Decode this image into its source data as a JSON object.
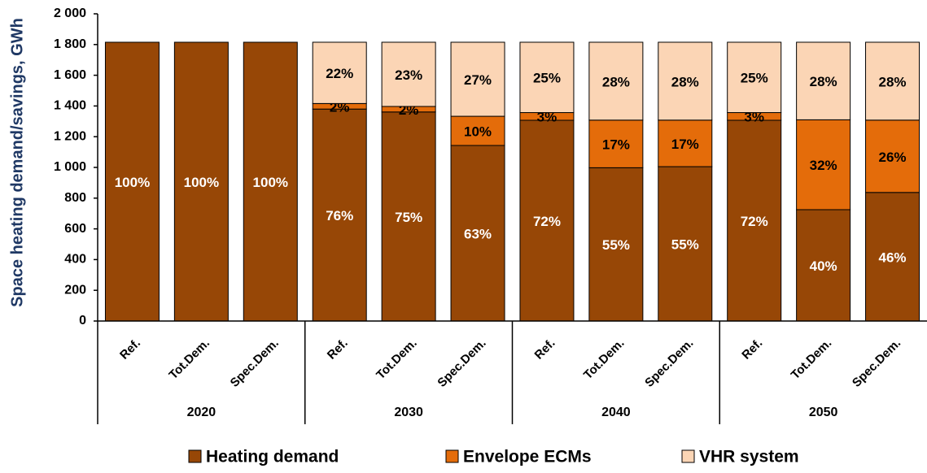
{
  "chart_data": {
    "type": "stacked_bar",
    "y_label": "Space heating demand/savings, GWh",
    "categories": [
      "Ref.",
      "Tot.Dem.",
      "Spec.Dem.",
      "Ref.",
      "Tot.Dem.",
      "Spec.Dem.",
      "Ref.",
      "Tot.Dem.",
      "Spec.Dem.",
      "Ref.",
      "Tot.Dem.",
      "Spec.Dem."
    ],
    "groups": [
      "2020",
      "2030",
      "2040",
      "2050"
    ],
    "ylim": [
      0,
      2000
    ],
    "yticks": [
      0,
      200,
      400,
      600,
      800,
      {
        "value": 1000,
        "label": "1 000"
      },
      {
        "value": 1200,
        "label": "1 200"
      },
      {
        "value": 1400,
        "label": "1 400"
      },
      {
        "value": 1600,
        "label": "1 600"
      },
      {
        "value": 1800,
        "label": "1 800"
      },
      {
        "value": 2000,
        "label": "2 000"
      }
    ],
    "series": [
      {
        "name": "Heating demand",
        "color": "#974706",
        "values": [
          1815,
          1815,
          1815,
          1380,
          1361,
          1143,
          1307,
          998,
          1005,
          1307,
          725,
          837
        ],
        "value_labels": [
          "100%",
          "100%",
          "100%",
          "76%",
          "75%",
          "63%",
          "72%",
          "55%",
          "55%",
          "72%",
          "40%",
          "46%"
        ]
      },
      {
        "name": "Envelope ECMs",
        "color": "#e46c0a",
        "values": [
          0,
          0,
          0,
          36,
          36,
          190,
          50,
          310,
          303,
          50,
          585,
          471
        ],
        "value_labels": [
          null,
          null,
          null,
          "2%",
          "2%",
          "10%",
          "3%",
          "17%",
          "17%",
          "3%",
          "32%",
          "26%"
        ]
      },
      {
        "name": "VHR system",
        "color": "#fbd5b5",
        "values": [
          0,
          0,
          0,
          399,
          418,
          482,
          458,
          507,
          507,
          458,
          505,
          507
        ],
        "value_labels": [
          null,
          null,
          null,
          "22%",
          "23%",
          "27%",
          "25%",
          "28%",
          "28%",
          "25%",
          "28%",
          "28%"
        ]
      }
    ]
  }
}
